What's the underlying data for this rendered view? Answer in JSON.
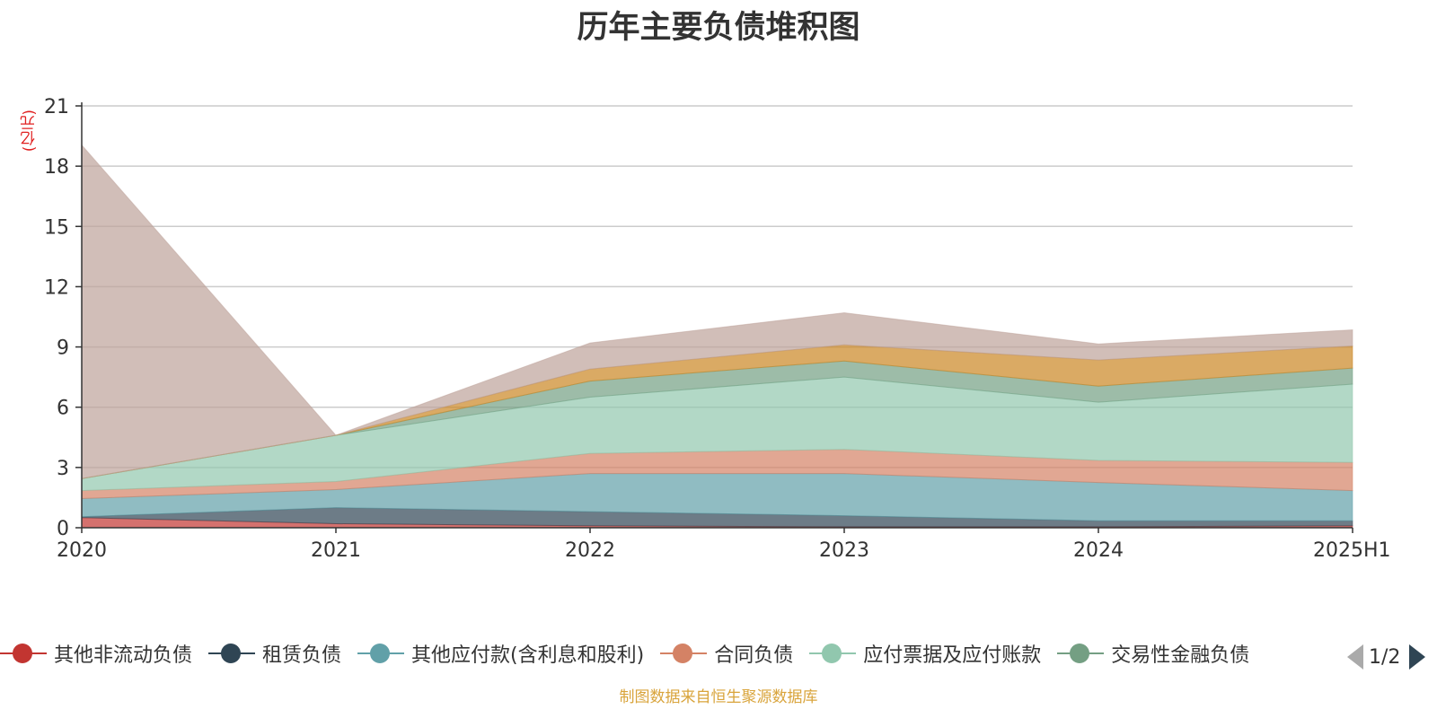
{
  "title": "历年主要负债堆积图",
  "unit_label": "(亿元)",
  "source_text": "制图数据来自恒生聚源数据库",
  "pager": {
    "text": "1/2"
  },
  "chart_data": {
    "type": "area",
    "stacked": true,
    "categories": [
      "2020",
      "2021",
      "2022",
      "2023",
      "2024",
      "2025H1"
    ],
    "ylim": [
      0,
      21
    ],
    "yticks": [
      0,
      3,
      6,
      9,
      12,
      15,
      18,
      21
    ],
    "grid": true,
    "legend_position": "bottom",
    "series": [
      {
        "name": "其他非流动负债",
        "color": "#c23531",
        "values": [
          0.5,
          0.2,
          0.1,
          0.05,
          0.05,
          0.1
        ]
      },
      {
        "name": "租赁负债",
        "color": "#2f4554",
        "values": [
          0.05,
          0.8,
          0.7,
          0.55,
          0.3,
          0.25
        ]
      },
      {
        "name": "其他应付款(含利息和股利)",
        "color": "#61a0a8",
        "values": [
          0.9,
          0.9,
          1.9,
          2.1,
          1.9,
          1.5
        ]
      },
      {
        "name": "合同负债",
        "color": "#d48265",
        "values": [
          0.4,
          0.4,
          1.0,
          1.2,
          1.1,
          1.4
        ]
      },
      {
        "name": "应付票据及应付账款",
        "color": "#91c7ae",
        "values": [
          0.6,
          2.3,
          2.8,
          3.6,
          2.9,
          3.9
        ]
      },
      {
        "name": "交易性金融负债",
        "color": "#749f83",
        "values": [
          0.0,
          0.0,
          0.8,
          0.8,
          0.8,
          0.8
        ]
      },
      {
        "name": "",
        "color": "#ca8622",
        "values": [
          0.0,
          0.0,
          0.6,
          0.8,
          1.3,
          1.1
        ]
      },
      {
        "name": "",
        "color": "#bda29a",
        "values": [
          16.6,
          0.0,
          1.3,
          1.6,
          0.8,
          0.8
        ]
      }
    ]
  }
}
